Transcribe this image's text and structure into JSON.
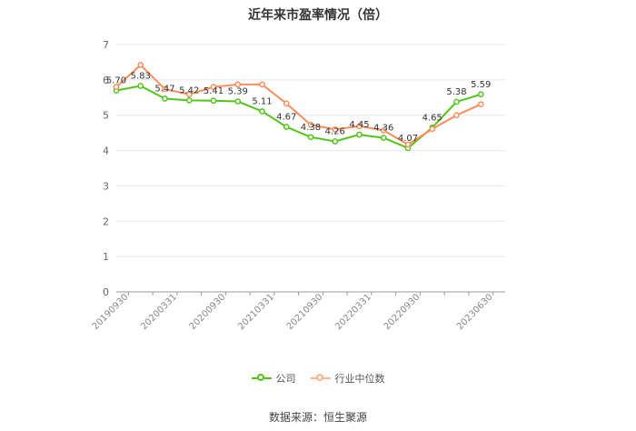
{
  "chart_data": {
    "type": "line",
    "title": "近年来市盈率情况（倍）",
    "x": [
      "20190930",
      "20191231",
      "20200331",
      "20200630",
      "20200930",
      "20201231",
      "20210331",
      "20210630",
      "20210930",
      "20211231",
      "20220331",
      "20220630",
      "20220930",
      "20221231",
      "20230331",
      "20230630",
      "20230930"
    ],
    "x_tick_labels": [
      "20190930",
      "20200331",
      "20200930",
      "20210331",
      "20210930",
      "20220331",
      "20220930",
      "20230630"
    ],
    "ylim": [
      0,
      7
    ],
    "yticks": [
      0,
      1,
      2,
      3,
      4,
      5,
      6,
      7
    ],
    "grid": true,
    "legend_position": "bottom",
    "series": [
      {
        "name": "公司",
        "color": "#52c41a",
        "values": [
          5.7,
          5.83,
          5.47,
          5.42,
          5.41,
          5.39,
          5.11,
          4.67,
          4.38,
          4.26,
          4.45,
          4.36,
          4.07,
          4.65,
          5.38,
          5.59,
          null
        ],
        "data_labels": [
          "5.70",
          "5.83",
          "5.47",
          "5.42",
          "5.41",
          "5.39",
          "5.11",
          "4.67",
          "4.38",
          "4.26",
          "4.45",
          "4.36",
          "4.07",
          "4.65",
          "5.38",
          "5.59",
          ""
        ]
      },
      {
        "name": "行业中位数",
        "color": "#ff8c5a",
        "values": [
          5.8,
          6.42,
          5.74,
          5.59,
          5.8,
          5.87,
          5.87,
          5.33,
          4.73,
          4.6,
          4.69,
          4.57,
          4.17,
          4.61,
          5.0,
          5.31,
          null
        ]
      }
    ]
  },
  "source": "数据来源：恒生聚源"
}
